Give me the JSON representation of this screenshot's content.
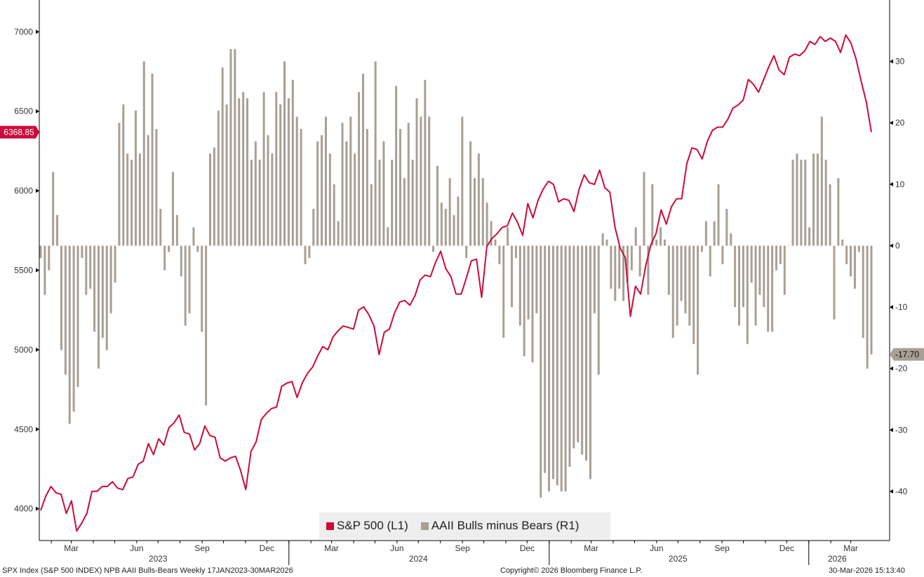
{
  "chart_data": {
    "type": "bar+line",
    "left_axis": {
      "ticks": [
        4000,
        4500,
        5000,
        5500,
        6000,
        6500,
        7000
      ],
      "range": [
        3800,
        7200
      ]
    },
    "right_axis": {
      "ticks": [
        30,
        20,
        10,
        0,
        -10,
        -20,
        -30,
        -40
      ],
      "range": [
        -48,
        40
      ]
    },
    "x_range": [
      "2023-01-17",
      "2026-03-30"
    ],
    "month_labels": [
      {
        "label": "Mar",
        "date": "2023-03-01"
      },
      {
        "label": "Jun",
        "date": "2023-06-01"
      },
      {
        "label": "Sep",
        "date": "2023-09-01"
      },
      {
        "label": "Dec",
        "date": "2023-12-01"
      },
      {
        "label": "Mar",
        "date": "2024-03-01"
      },
      {
        "label": "Jun",
        "date": "2024-06-01"
      },
      {
        "label": "Sep",
        "date": "2024-09-01"
      },
      {
        "label": "Dec",
        "date": "2024-12-01"
      },
      {
        "label": "Mar",
        "date": "2025-03-01"
      },
      {
        "label": "Jun",
        "date": "2025-06-01"
      },
      {
        "label": "Sep",
        "date": "2025-09-01"
      },
      {
        "label": "Dec",
        "date": "2025-12-01"
      },
      {
        "label": "Mar",
        "date": "2026-03-01"
      }
    ],
    "year_labels": [
      {
        "label": "2023",
        "date": "2023-07-01"
      },
      {
        "label": "2024",
        "date": "2024-07-01"
      },
      {
        "label": "2025",
        "date": "2025-07-01"
      },
      {
        "label": "2026",
        "date": "2026-02-10"
      }
    ],
    "year_boundaries": [
      "2024-01-01",
      "2025-01-01",
      "2026-01-01"
    ],
    "series": [
      {
        "name": "S&P 500 (L1)",
        "axis": "left",
        "kind": "line",
        "color": "#cc0a3c",
        "last_value_label": "6368.85",
        "values": [
          3990,
          4080,
          4140,
          4100,
          4090,
          3970,
          4050,
          3860,
          3910,
          3970,
          4110,
          4110,
          4140,
          4140,
          4170,
          4130,
          4120,
          4190,
          4200,
          4280,
          4300,
          4410,
          4340,
          4440,
          4400,
          4510,
          4540,
          4590,
          4480,
          4470,
          4370,
          4410,
          4520,
          4460,
          4450,
          4320,
          4300,
          4320,
          4330,
          4240,
          4120,
          4360,
          4420,
          4560,
          4600,
          4630,
          4640,
          4770,
          4790,
          4800,
          4700,
          4790,
          4850,
          4890,
          4960,
          5020,
          5000,
          5080,
          5120,
          5150,
          5140,
          5130,
          5250,
          5270,
          5220,
          5150,
          4970,
          5110,
          5130,
          5230,
          5300,
          5310,
          5280,
          5340,
          5440,
          5470,
          5460,
          5550,
          5620,
          5510,
          5460,
          5350,
          5350,
          5450,
          5560,
          5570,
          5330,
          5650,
          5700,
          5730,
          5770,
          5780,
          5860,
          5800,
          5720,
          5920,
          5830,
          5940,
          6010,
          6060,
          6040,
          5930,
          5950,
          5940,
          5870,
          6010,
          6100,
          6050,
          6040,
          6130,
          6020,
          5990,
          5770,
          5640,
          5580,
          5210,
          5400,
          5350,
          5530,
          5660,
          5730,
          5880,
          5790,
          5900,
          5950,
          5950,
          6170,
          6270,
          6260,
          6200,
          6310,
          6380,
          6400,
          6400,
          6450,
          6520,
          6540,
          6570,
          6700,
          6670,
          6620,
          6700,
          6780,
          6850,
          6760,
          6730,
          6840,
          6860,
          6850,
          6880,
          6940,
          6920,
          6970,
          6940,
          6960,
          6940,
          6870,
          6980,
          6930,
          6830,
          6690,
          6560,
          6368.85
        ]
      },
      {
        "name": "AAII Bulls minus Bears (R1)",
        "axis": "right",
        "kind": "bar",
        "color": "#a89f95",
        "last_value_label": "-17.70",
        "values": [
          -2,
          -8,
          -4,
          12,
          5,
          -17,
          -21,
          -29,
          -27,
          -23,
          -2,
          -8,
          -7,
          -14,
          -20,
          -15,
          -17,
          -11,
          -6,
          20,
          23,
          15,
          14,
          22,
          15,
          30,
          18,
          28,
          19,
          6,
          -4,
          -1,
          12,
          5,
          -5,
          -13,
          -11,
          3,
          -1,
          -14,
          -26,
          15,
          16,
          22,
          29,
          23,
          32,
          32,
          24,
          25,
          24,
          14,
          17,
          14,
          25,
          18,
          15,
          25,
          23,
          30,
          24,
          27,
          21,
          19,
          -3,
          -2,
          6,
          17,
          18,
          21,
          15,
          10,
          4,
          20,
          17,
          21,
          15,
          25,
          28,
          19,
          10,
          30,
          14,
          17,
          3,
          14,
          26,
          19,
          11,
          20,
          14,
          24,
          21,
          27,
          21,
          -1,
          13,
          7,
          6,
          11,
          5,
          8,
          21,
          -2,
          17,
          11,
          15,
          11,
          7,
          4,
          1,
          -3,
          -15,
          3,
          -10,
          -2,
          -13,
          -18,
          -12,
          -19,
          -11,
          -41,
          -37,
          -40,
          -38,
          -39,
          -40,
          -40,
          -36,
          -33,
          -32,
          -34,
          -35,
          -38,
          -11,
          -21,
          2,
          1,
          -7,
          -9,
          -7,
          -9,
          -6,
          -4,
          3,
          -5,
          12,
          -8,
          10,
          1,
          3,
          1,
          -8,
          -15,
          -13,
          -9,
          -11,
          -13,
          -16,
          -21,
          -1,
          4,
          -5,
          4,
          10,
          -3,
          6,
          2,
          -10,
          -13,
          -10,
          -16,
          -6,
          -13,
          -8,
          -10,
          -14,
          -14,
          -4,
          -3,
          -8,
          0,
          14,
          15,
          14,
          14,
          3,
          15,
          15,
          21,
          14,
          10,
          -12,
          11,
          1,
          -3,
          -5,
          -7,
          -1,
          -15,
          -20,
          -17.7
        ]
      }
    ],
    "legend_placement": "bottom-center",
    "grid": false
  },
  "footer": {
    "source": "SPX Index (S&P 500 INDEX) NPB AAII Bulls-Bears Weekly 17JAN2023-30MAR2026",
    "copyright": "Copyright© 2026 Bloomberg Finance L.P.",
    "timestamp": "30-Mar-2026 15:13:40"
  },
  "legend": {
    "line_label": "S&P 500 (L1)",
    "bar_label": "AAII Bulls minus Bears (R1)",
    "line_color": "#cc0a3c",
    "bar_color": "#a89f95"
  }
}
